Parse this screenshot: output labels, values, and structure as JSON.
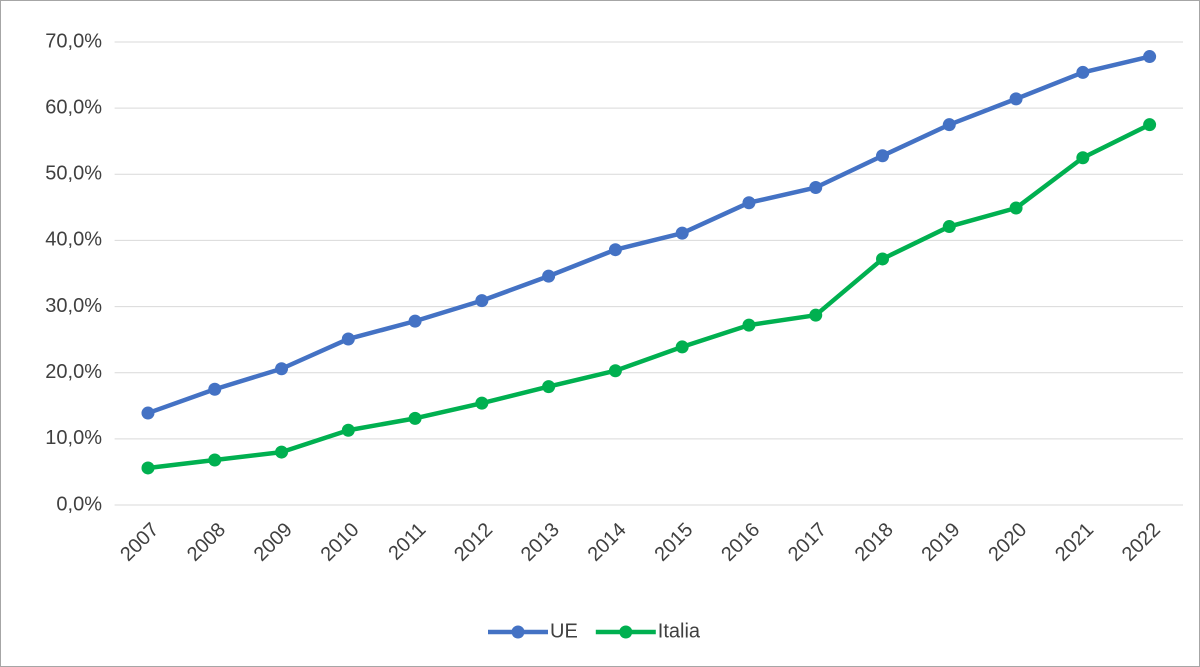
{
  "chart_data": {
    "type": "line",
    "categories": [
      "2007",
      "2008",
      "2009",
      "2010",
      "2011",
      "2012",
      "2013",
      "2014",
      "2015",
      "2016",
      "2017",
      "2018",
      "2019",
      "2020",
      "2021",
      "2022"
    ],
    "series": [
      {
        "name": "UE",
        "color": "#4472c4",
        "values": [
          13.9,
          17.5,
          20.6,
          25.1,
          27.8,
          30.9,
          34.6,
          38.6,
          41.1,
          45.7,
          48.0,
          52.8,
          57.5,
          61.4,
          65.4,
          67.8
        ]
      },
      {
        "name": "Italia",
        "color": "#00b050",
        "values": [
          5.6,
          6.8,
          8.0,
          11.3,
          13.1,
          15.4,
          17.9,
          20.3,
          23.9,
          27.2,
          28.7,
          37.2,
          42.1,
          44.9,
          52.5,
          57.5
        ]
      }
    ],
    "ylim": [
      0,
      70
    ],
    "yticks": [
      {
        "value": 0,
        "label": "0,0%"
      },
      {
        "value": 10,
        "label": "10,0%"
      },
      {
        "value": 20,
        "label": "20,0%"
      },
      {
        "value": 30,
        "label": "30,0%"
      },
      {
        "value": 40,
        "label": "40,0%"
      },
      {
        "value": 50,
        "label": "50,0%"
      },
      {
        "value": 60,
        "label": "60,0%"
      },
      {
        "value": 70,
        "label": "70,0%"
      }
    ],
    "grid": true,
    "legend": "bottom"
  }
}
